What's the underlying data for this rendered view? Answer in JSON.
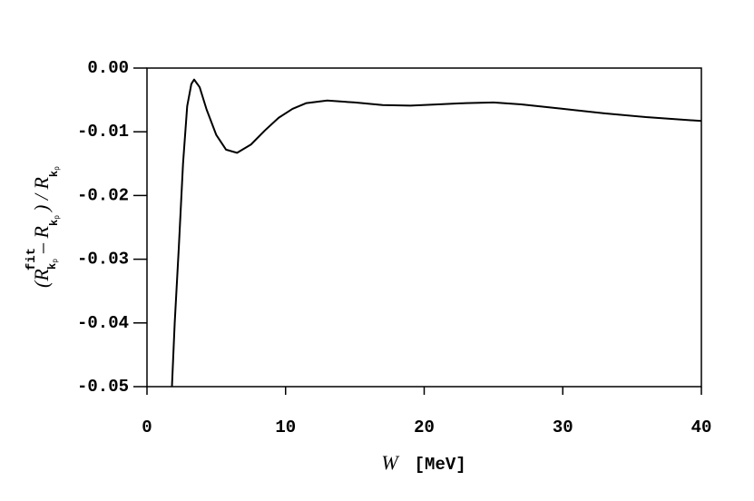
{
  "chart_data": {
    "type": "line",
    "ylabel": [
      "(R",
      "fit",
      "k",
      "p",
      "– R",
      "k",
      "p",
      ") / R",
      "k",
      "p"
    ],
    "xlabel": [
      "W",
      "[MeV]"
    ],
    "x": [
      1.8,
      2.0,
      2.3,
      2.6,
      2.9,
      3.2,
      3.4,
      3.8,
      4.3,
      5.0,
      5.7,
      6.5,
      7.5,
      8.5,
      9.5,
      10.5,
      11.5,
      13,
      15,
      17,
      19,
      21,
      23,
      25,
      27,
      30,
      33,
      36,
      40
    ],
    "series": [
      {
        "color": "#000000",
        "values": [
          -0.05,
          -0.04,
          -0.028,
          -0.015,
          -0.006,
          -0.0025,
          -0.0018,
          -0.003,
          -0.0065,
          -0.0105,
          -0.0128,
          -0.0133,
          -0.012,
          -0.0098,
          -0.0078,
          -0.0064,
          -0.0055,
          -0.0051,
          -0.0054,
          -0.0058,
          -0.0059,
          -0.0057,
          -0.0055,
          -0.0054,
          -0.0057,
          -0.0064,
          -0.0071,
          -0.0077,
          -0.0083
        ]
      }
    ],
    "xlim": [
      0,
      40
    ],
    "xticks": [
      0,
      10,
      20,
      30,
      40
    ],
    "ylim": [
      -0.05,
      0
    ],
    "yticks": [
      -0.05,
      -0.04,
      -0.03,
      -0.02,
      -0.01,
      {
        "value": 0,
        "label": "0.00"
      }
    ]
  }
}
